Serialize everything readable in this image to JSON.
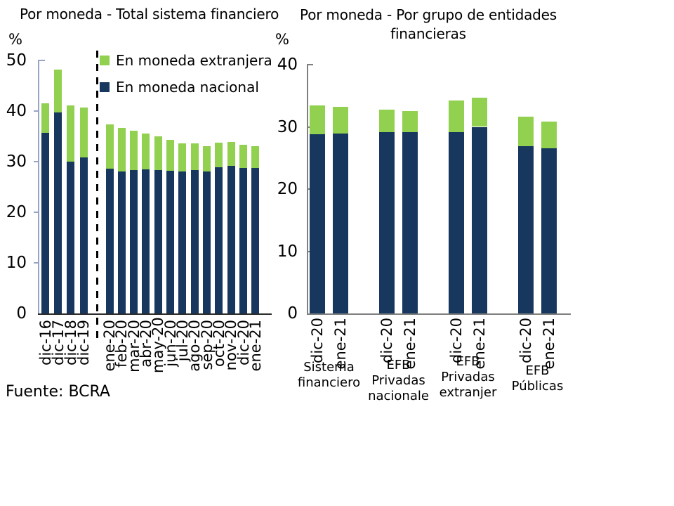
{
  "fuente": "Fuente: BCRA",
  "colors": {
    "nacional": "#17375E",
    "extranjera": "#92D050",
    "left_y_axis": "#96A5C6",
    "left_x_axis": "#2B2B2B",
    "right_axis": "#7F7F7F"
  },
  "charts": {
    "left": {
      "title": "Por moneda - Total sistema financiero",
      "unit": "%",
      "legend": {
        "extranjera": "En moneda extranjera",
        "nacional": "En moneda nacional"
      }
    },
    "right": {
      "title": "Por moneda - Por grupo de entidades financieras",
      "unit": "%"
    }
  },
  "chart_data": [
    {
      "type": "bar",
      "stacked": true,
      "title": "Por moneda - Total sistema financiero",
      "ylabel": "%",
      "ylim": [
        0,
        50
      ],
      "yticks": [
        0,
        10,
        20,
        30,
        40,
        50
      ],
      "grid": false,
      "legend_position": "top-inside",
      "divider_after_category": "dic-19",
      "categories": [
        "dic-16",
        "dic-17",
        "dic-18",
        "dic-19",
        "ene-20",
        "feb-20",
        "mar-20",
        "abr-20",
        "may-20",
        "jun-20",
        "jul-20",
        "ago-20",
        "sep-20",
        "oct-20",
        "nov-20",
        "dic-20",
        "ene-21"
      ],
      "series": [
        {
          "name": "En moneda nacional",
          "color_key": "nacional",
          "values": [
            35.7,
            39.7,
            30.0,
            30.9,
            28.6,
            28.1,
            28.4,
            28.5,
            28.4,
            28.2,
            28.1,
            28.3,
            28.0,
            28.9,
            29.2,
            28.7,
            28.7
          ]
        },
        {
          "name": "En moneda extranjera",
          "color_key": "extranjera",
          "values": [
            5.8,
            8.5,
            11.1,
            9.8,
            8.7,
            8.5,
            7.7,
            7.0,
            6.6,
            6.1,
            5.5,
            5.3,
            5.0,
            4.9,
            4.7,
            4.6,
            4.4
          ]
        }
      ]
    },
    {
      "type": "bar",
      "stacked": true,
      "title": "Por moneda - Por grupo de entidades financieras",
      "ylabel": "%",
      "ylim": [
        0,
        40
      ],
      "yticks": [
        0,
        10,
        20,
        30,
        40
      ],
      "grid": false,
      "groups": [
        {
          "label_lines": [
            "Sistema",
            "financiero"
          ],
          "bars": [
            {
              "period": "dic-20",
              "nacional": 28.8,
              "extranjera": 4.6
            },
            {
              "period": "ene-21",
              "nacional": 28.9,
              "extranjera": 4.3
            }
          ]
        },
        {
          "label_lines": [
            "EFB",
            "Privadas",
            "nacionale"
          ],
          "bars": [
            {
              "period": "dic-20",
              "nacional": 29.2,
              "extranjera": 3.6
            },
            {
              "period": "ene-21",
              "nacional": 29.2,
              "extranjera": 3.3
            }
          ]
        },
        {
          "label_lines": [
            "EFB",
            "Privadas",
            "extranjer"
          ],
          "bars": [
            {
              "period": "dic-20",
              "nacional": 29.1,
              "extranjera": 5.1
            },
            {
              "period": "ene-21",
              "nacional": 30.0,
              "extranjera": 4.7
            }
          ]
        },
        {
          "label_lines": [
            "EFB",
            "Públicas"
          ],
          "bars": [
            {
              "period": "dic-20",
              "nacional": 26.9,
              "extranjera": 4.7
            },
            {
              "period": "ene-21",
              "nacional": 26.6,
              "extranjera": 4.3
            }
          ]
        }
      ]
    }
  ]
}
